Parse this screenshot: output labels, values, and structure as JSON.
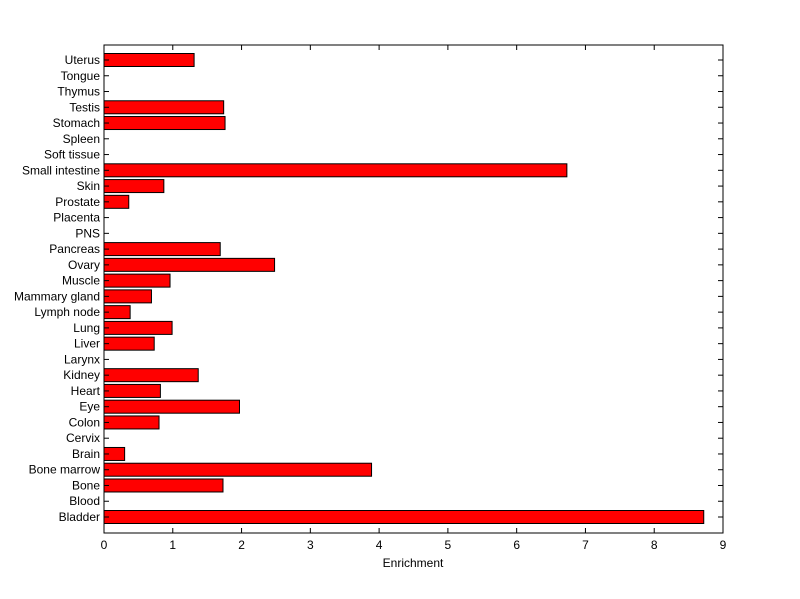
{
  "chart_data": {
    "type": "bar",
    "orientation": "horizontal",
    "title": "",
    "xlabel": "Enrichment",
    "ylabel": "",
    "xlim": [
      0,
      9
    ],
    "xticks": [
      0,
      1,
      2,
      3,
      4,
      5,
      6,
      7,
      8,
      9
    ],
    "bar_color": "#ff0000",
    "bar_edge_color": "#000000",
    "grid": false,
    "legend": "none",
    "categories": [
      "Bladder",
      "Blood",
      "Bone",
      "Bone marrow",
      "Brain",
      "Cervix",
      "Colon",
      "Eye",
      "Heart",
      "Kidney",
      "Larynx",
      "Liver",
      "Lung",
      "Lymph node",
      "Mammary gland",
      "Muscle",
      "Ovary",
      "Pancreas",
      "PNS",
      "Placenta",
      "Prostate",
      "Skin",
      "Small intestine",
      "Soft tissue",
      "Spleen",
      "Stomach",
      "Testis",
      "Thymus",
      "Tongue",
      "Uterus"
    ],
    "values": [
      8.72,
      0,
      1.73,
      3.89,
      0.3,
      0,
      0.8,
      1.97,
      0.82,
      1.37,
      0,
      0.73,
      0.99,
      0.38,
      0.69,
      0.96,
      2.48,
      1.69,
      0,
      0,
      0.36,
      0.87,
      6.73,
      0,
      0,
      1.76,
      1.74,
      0,
      0,
      1.31
    ]
  }
}
